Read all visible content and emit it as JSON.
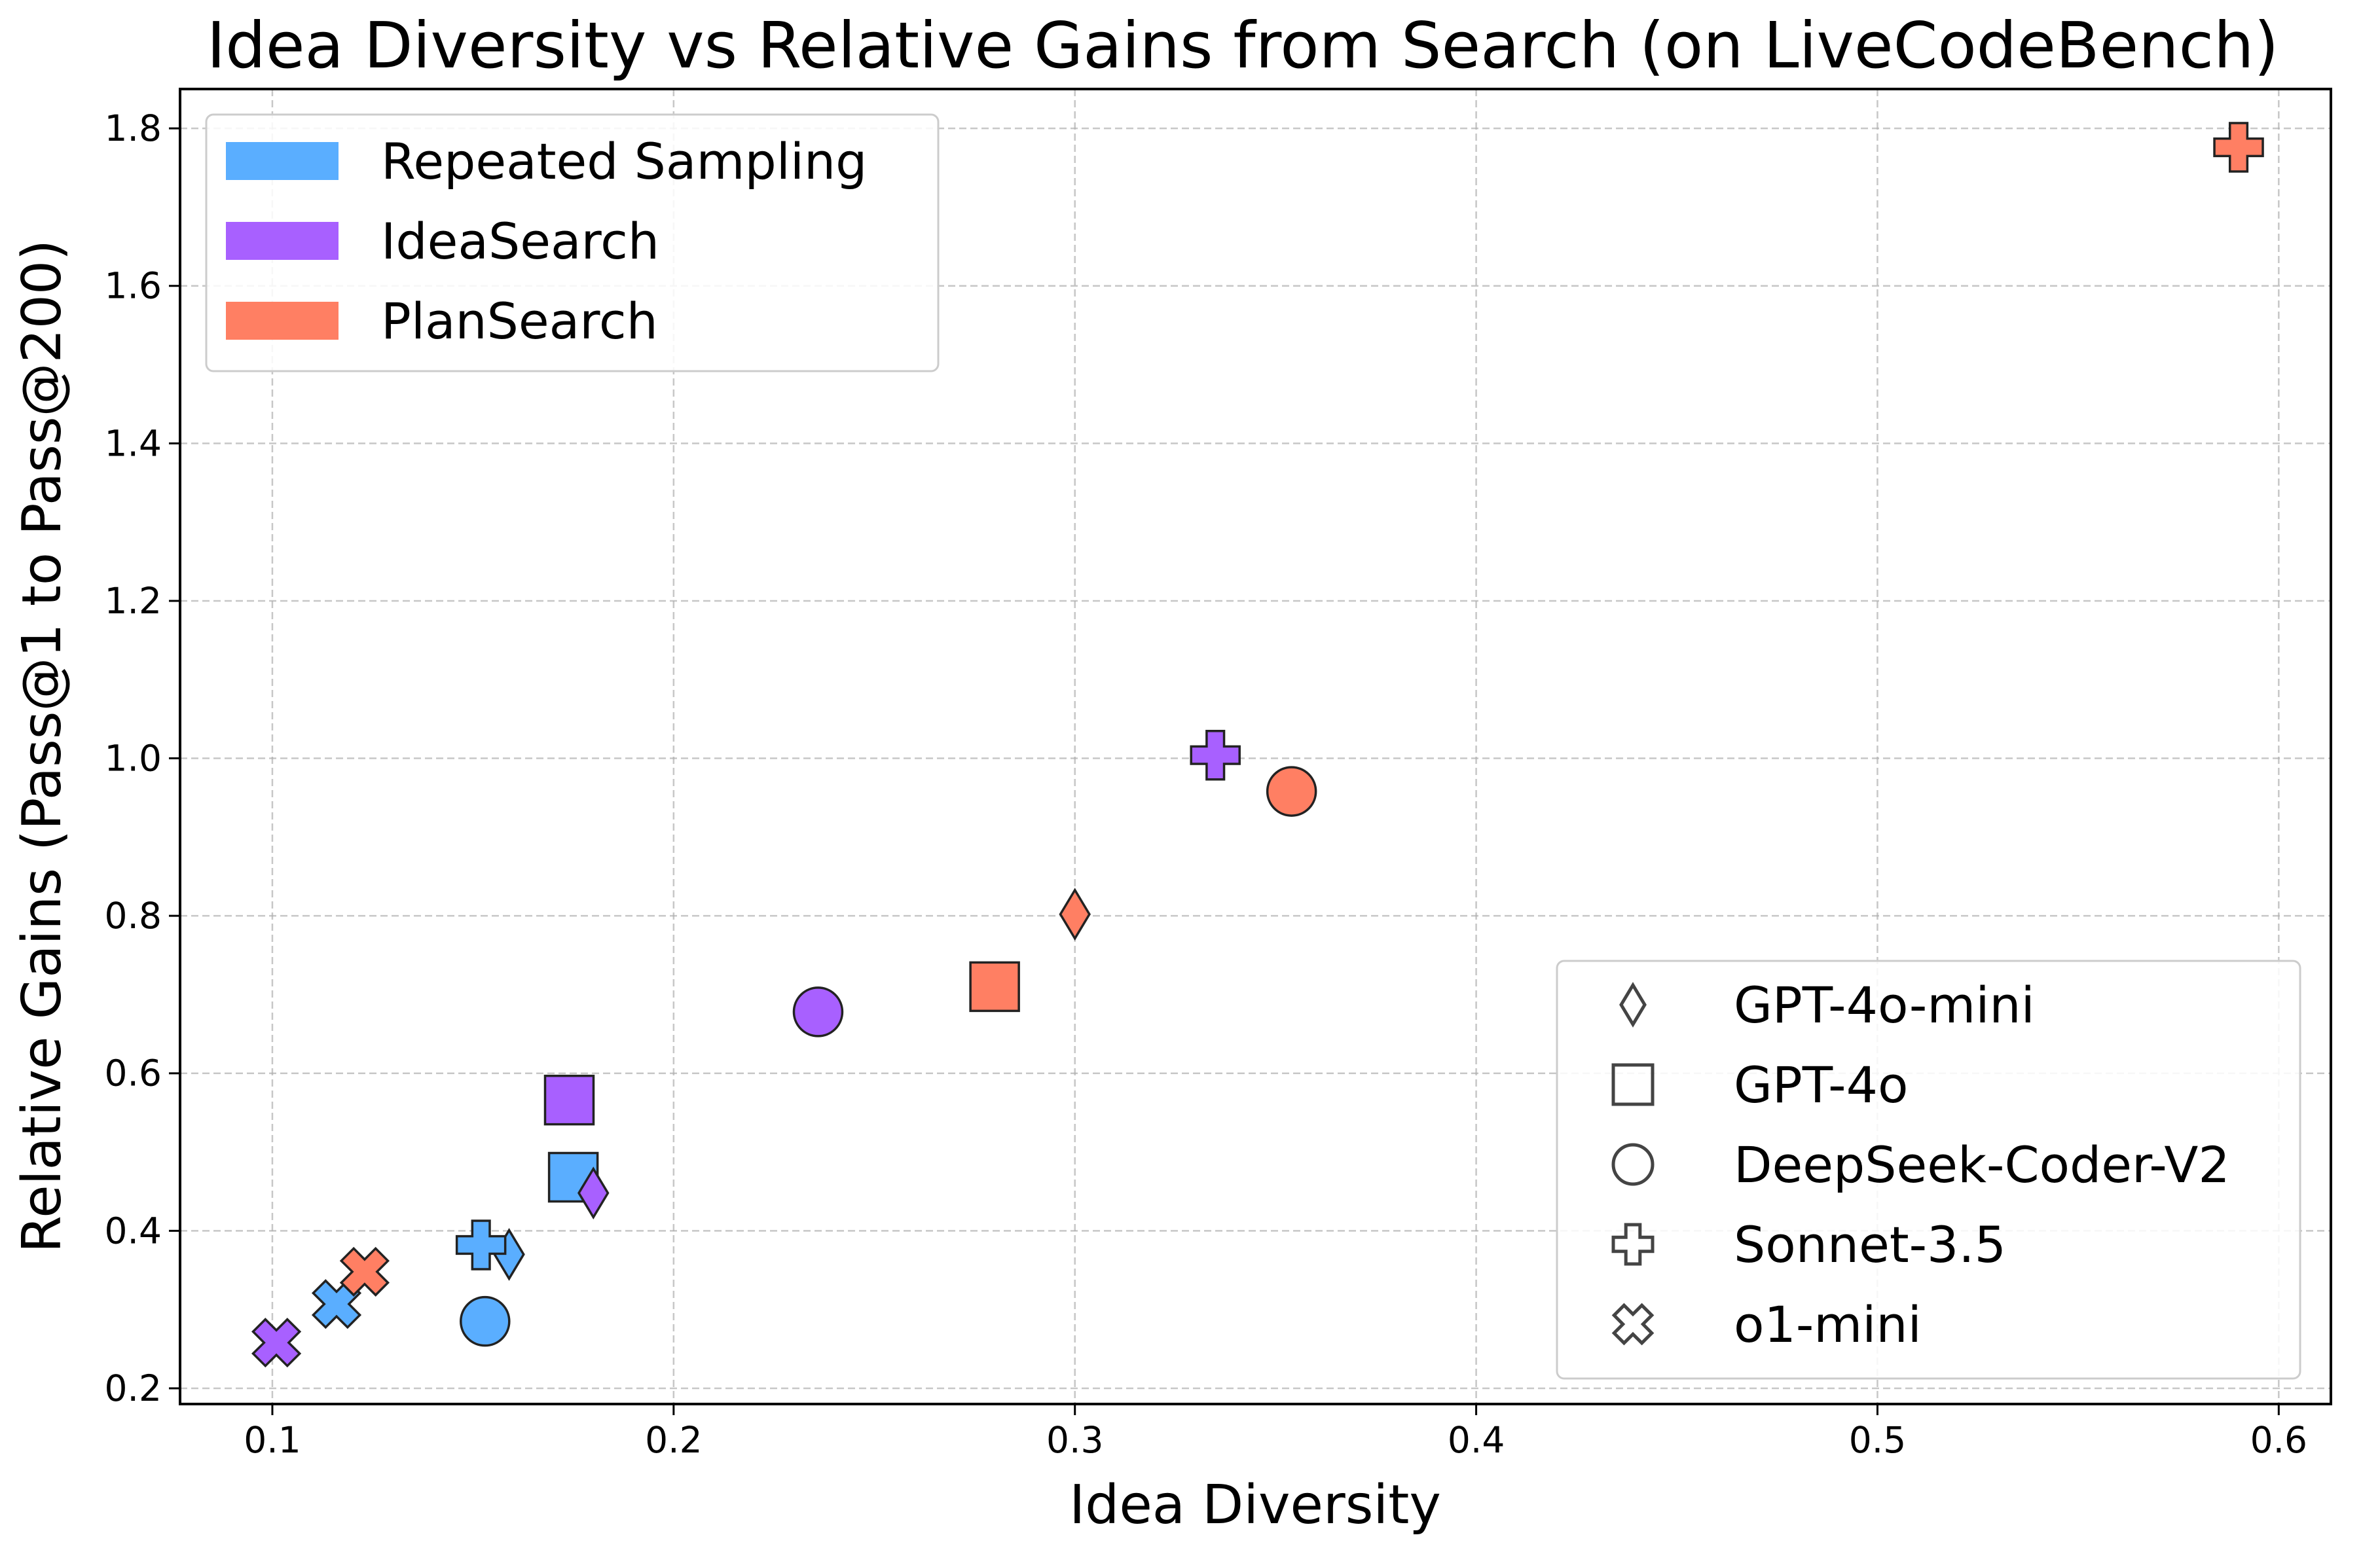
{
  "chart_data": {
    "type": "scatter",
    "title": "Idea Diversity vs Relative Gains from Search (on LiveCodeBench)",
    "xlabel": "Idea Diversity",
    "ylabel": "Relative Gains (Pass@1 to Pass@200)",
    "xlim": [
      0.077,
      0.613
    ],
    "ylim": [
      0.18,
      1.85
    ],
    "xticks": [
      0.1,
      0.2,
      0.3,
      0.4,
      0.5,
      0.6
    ],
    "xtick_labels": [
      "0.1",
      "0.2",
      "0.3",
      "0.4",
      "0.5",
      "0.6"
    ],
    "yticks": [
      0.2,
      0.4,
      0.6,
      0.8,
      1.0,
      1.2,
      1.4,
      1.6,
      1.8
    ],
    "ytick_labels": [
      "0.2",
      "0.4",
      "0.6",
      "0.8",
      "1.0",
      "1.2",
      "1.4",
      "1.6",
      "1.8"
    ],
    "grid": true,
    "color_legend_position": "top-left",
    "marker_legend_position": "bottom-right",
    "methods": [
      {
        "name": "Repeated Sampling",
        "color": "#5aaeff"
      },
      {
        "name": "IdeaSearch",
        "color": "#a860ff"
      },
      {
        "name": "PlanSearch",
        "color": "#ff7f63"
      }
    ],
    "models": [
      {
        "name": "GPT-4o-mini",
        "marker": "diamond"
      },
      {
        "name": "GPT-4o",
        "marker": "square"
      },
      {
        "name": "DeepSeek-Coder-V2",
        "marker": "circle"
      },
      {
        "name": "Sonnet-3.5",
        "marker": "plus"
      },
      {
        "name": "o1-mini",
        "marker": "x"
      }
    ],
    "points": [
      {
        "method": "Repeated Sampling",
        "model": "GPT-4o-mini",
        "x": 0.159,
        "y": 0.37
      },
      {
        "method": "Repeated Sampling",
        "model": "GPT-4o",
        "x": 0.175,
        "y": 0.468
      },
      {
        "method": "Repeated Sampling",
        "model": "DeepSeek-Coder-V2",
        "x": 0.153,
        "y": 0.285
      },
      {
        "method": "Repeated Sampling",
        "model": "Sonnet-3.5",
        "x": 0.152,
        "y": 0.382
      },
      {
        "method": "Repeated Sampling",
        "model": "o1-mini",
        "x": 0.116,
        "y": 0.307
      },
      {
        "method": "IdeaSearch",
        "model": "GPT-4o-mini",
        "x": 0.18,
        "y": 0.448
      },
      {
        "method": "IdeaSearch",
        "model": "GPT-4o",
        "x": 0.174,
        "y": 0.566
      },
      {
        "method": "IdeaSearch",
        "model": "DeepSeek-Coder-V2",
        "x": 0.236,
        "y": 0.678
      },
      {
        "method": "IdeaSearch",
        "model": "Sonnet-3.5",
        "x": 0.335,
        "y": 1.004
      },
      {
        "method": "IdeaSearch",
        "model": "o1-mini",
        "x": 0.101,
        "y": 0.258
      },
      {
        "method": "PlanSearch",
        "model": "GPT-4o-mini",
        "x": 0.3,
        "y": 0.802
      },
      {
        "method": "PlanSearch",
        "model": "GPT-4o",
        "x": 0.28,
        "y": 0.71
      },
      {
        "method": "PlanSearch",
        "model": "DeepSeek-Coder-V2",
        "x": 0.354,
        "y": 0.958
      },
      {
        "method": "PlanSearch",
        "model": "Sonnet-3.5",
        "x": 0.59,
        "y": 1.776
      },
      {
        "method": "PlanSearch",
        "model": "o1-mini",
        "x": 0.123,
        "y": 0.348
      }
    ]
  }
}
